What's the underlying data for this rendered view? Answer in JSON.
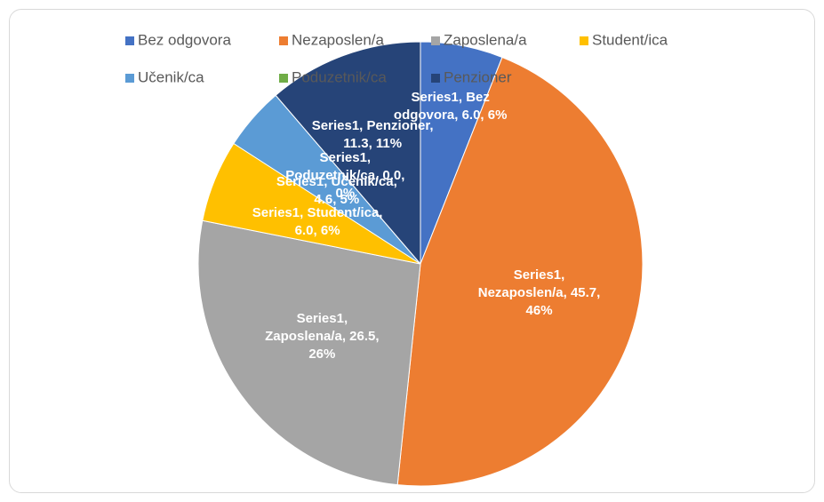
{
  "chart_data": {
    "type": "pie",
    "categories": [
      "Bez odgovora",
      "Nezaposlen/a",
      "Zaposlena/a",
      "Student/ica",
      "Učenik/ca",
      "Poduzetnik/ca",
      "Penzioner"
    ],
    "values": [
      6.0,
      45.7,
      26.5,
      6.0,
      4.6,
      0.0,
      11.3
    ],
    "value_labels": [
      "Series1, Bez odgovora, 6.0, 6%",
      "Series1, Nezaposlen/a, 45.7, 46%",
      "Series1, Zaposlena/a, 26.5, 26%",
      "Series1, Student/ica, 6.0, 6%",
      "Series1, Učenik/ca, 4.6, 5%",
      "Series1, Poduzetnik/ca, 0.0, 0%",
      "Series1, Penzioner, 11.3, 11%"
    ],
    "colors": [
      "#4472c4",
      "#ed7d31",
      "#a5a5a5",
      "#ffc000",
      "#5b9bd5",
      "#70ad47",
      "#264478"
    ],
    "legend": "top"
  }
}
